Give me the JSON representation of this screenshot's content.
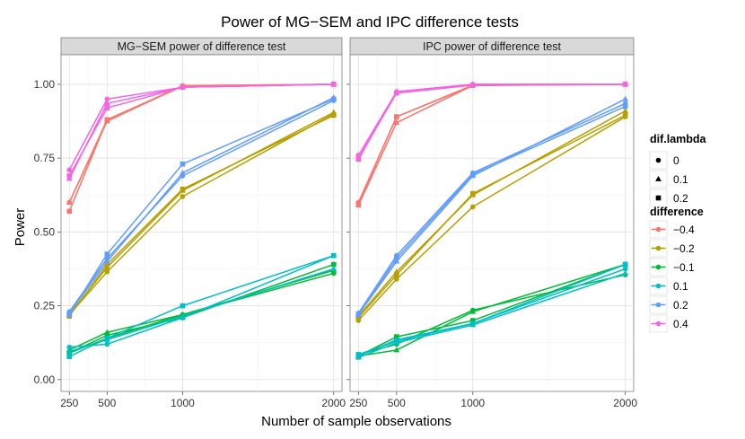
{
  "chart_data": {
    "type": "line",
    "title": "Power of MG−SEM and IPC difference tests",
    "xlabel": "Number of sample observations",
    "ylabel": "Power",
    "x": [
      250,
      500,
      1000,
      2000
    ],
    "x_ticks": [
      "250",
      "500",
      "1000",
      "2000"
    ],
    "xlim": [
      195,
      2055
    ],
    "ylim": [
      -0.04,
      1.1
    ],
    "y_ticks": [
      "0.00",
      "0.25",
      "0.50",
      "0.75",
      "1.00"
    ],
    "y_tick_values": [
      0,
      0.25,
      0.5,
      0.75,
      1.0
    ],
    "legend_shape_title": "dif.lambda",
    "legend_shape": [
      {
        "label": "0",
        "shape": "circle"
      },
      {
        "label": "0.1",
        "shape": "triangle"
      },
      {
        "label": "0.2",
        "shape": "square"
      }
    ],
    "legend_color_title": "difference",
    "legend_color": [
      {
        "label": "−0.4",
        "color": "#F8766D"
      },
      {
        "label": "−0.2",
        "color": "#B79F00"
      },
      {
        "label": "−0.1",
        "color": "#00BA38"
      },
      {
        "label": "0.1",
        "color": "#00BFC4"
      },
      {
        "label": "0.2",
        "color": "#619CFF"
      },
      {
        "label": "0.4",
        "color": "#F564E3"
      }
    ],
    "panels": [
      {
        "strip": "MG−SEM power of difference test",
        "series": [
          {
            "difference": "−0.4",
            "lambda": "0",
            "values": [
              0.6,
              0.88,
              0.995,
              1.0
            ]
          },
          {
            "difference": "−0.4",
            "lambda": "0.1",
            "values": [
              0.6,
              0.875,
              0.995,
              1.0
            ]
          },
          {
            "difference": "−0.4",
            "lambda": "0.2",
            "values": [
              0.57,
              0.88,
              0.993,
              1.0
            ]
          },
          {
            "difference": "−0.2",
            "lambda": "0",
            "values": [
              0.22,
              0.365,
              0.62,
              0.9
            ]
          },
          {
            "difference": "−0.2",
            "lambda": "0.1",
            "values": [
              0.22,
              0.38,
              0.64,
              0.905
            ]
          },
          {
            "difference": "−0.2",
            "lambda": "0.2",
            "values": [
              0.215,
              0.39,
              0.645,
              0.895
            ]
          },
          {
            "difference": "−0.1",
            "lambda": "0",
            "values": [
              0.09,
              0.14,
              0.22,
              0.36
            ]
          },
          {
            "difference": "−0.1",
            "lambda": "0.1",
            "values": [
              0.1,
              0.16,
              0.22,
              0.37
            ]
          },
          {
            "difference": "−0.1",
            "lambda": "0.2",
            "values": [
              0.09,
              0.15,
              0.21,
              0.39
            ]
          },
          {
            "difference": "0.1",
            "lambda": "0",
            "values": [
              0.11,
              0.12,
              0.21,
              0.42
            ]
          },
          {
            "difference": "0.1",
            "lambda": "0.1",
            "values": [
              0.095,
              0.135,
              0.215,
              0.375
            ]
          },
          {
            "difference": "0.1",
            "lambda": "0.2",
            "values": [
              0.078,
              0.14,
              0.25,
              0.42
            ]
          },
          {
            "difference": "0.2",
            "lambda": "0",
            "values": [
              0.23,
              0.41,
              0.69,
              0.945
            ]
          },
          {
            "difference": "0.2",
            "lambda": "0.1",
            "values": [
              0.225,
              0.4,
              0.7,
              0.955
            ]
          },
          {
            "difference": "0.2",
            "lambda": "0.2",
            "values": [
              0.22,
              0.425,
              0.73,
              0.95
            ]
          },
          {
            "difference": "0.4",
            "lambda": "0",
            "values": [
              0.71,
              0.95,
              0.99,
              1.0
            ]
          },
          {
            "difference": "0.4",
            "lambda": "0.1",
            "values": [
              0.68,
              0.935,
              0.99,
              1.0
            ]
          },
          {
            "difference": "0.4",
            "lambda": "0.2",
            "values": [
              0.69,
              0.92,
              0.99,
              1.0
            ]
          }
        ]
      },
      {
        "strip": "IPC  power of difference test",
        "series": [
          {
            "difference": "−0.4",
            "lambda": "0",
            "values": [
              0.6,
              0.89,
              0.997,
              1.0
            ]
          },
          {
            "difference": "−0.4",
            "lambda": "0.1",
            "values": [
              0.59,
              0.87,
              0.996,
              1.0
            ]
          },
          {
            "difference": "−0.4",
            "lambda": "0.2",
            "values": [
              0.595,
              0.89,
              0.996,
              1.0
            ]
          },
          {
            "difference": "−0.2",
            "lambda": "0",
            "values": [
              0.2,
              0.34,
              0.585,
              0.89
            ]
          },
          {
            "difference": "−0.2",
            "lambda": "0.1",
            "values": [
              0.215,
              0.365,
              0.625,
              0.91
            ]
          },
          {
            "difference": "−0.2",
            "lambda": "0.2",
            "values": [
              0.21,
              0.355,
              0.63,
              0.895
            ]
          },
          {
            "difference": "−0.1",
            "lambda": "0",
            "values": [
              0.085,
              0.12,
              0.235,
              0.355
            ]
          },
          {
            "difference": "−0.1",
            "lambda": "0.1",
            "values": [
              0.08,
              0.1,
              0.23,
              0.39
            ]
          },
          {
            "difference": "−0.1",
            "lambda": "0.2",
            "values": [
              0.08,
              0.145,
              0.2,
              0.39
            ]
          },
          {
            "difference": "0.1",
            "lambda": "0",
            "values": [
              0.08,
              0.135,
              0.19,
              0.375
            ]
          },
          {
            "difference": "0.1",
            "lambda": "0.1",
            "values": [
              0.075,
              0.125,
              0.185,
              0.36
            ]
          },
          {
            "difference": "0.1",
            "lambda": "0.2",
            "values": [
              0.085,
              0.13,
              0.19,
              0.39
            ]
          },
          {
            "difference": "0.2",
            "lambda": "0",
            "values": [
              0.225,
              0.42,
              0.7,
              0.935
            ]
          },
          {
            "difference": "0.2",
            "lambda": "0.1",
            "values": [
              0.22,
              0.4,
              0.69,
              0.95
            ]
          },
          {
            "difference": "0.2",
            "lambda": "0.2",
            "values": [
              0.22,
              0.41,
              0.695,
              0.925
            ]
          },
          {
            "difference": "0.4",
            "lambda": "0",
            "values": [
              0.76,
              0.975,
              1.0,
              1.0
            ]
          },
          {
            "difference": "0.4",
            "lambda": "0.1",
            "values": [
              0.745,
              0.975,
              1.0,
              1.0
            ]
          },
          {
            "difference": "0.4",
            "lambda": "0.2",
            "values": [
              0.75,
              0.97,
              0.997,
              1.0
            ]
          }
        ]
      }
    ]
  }
}
